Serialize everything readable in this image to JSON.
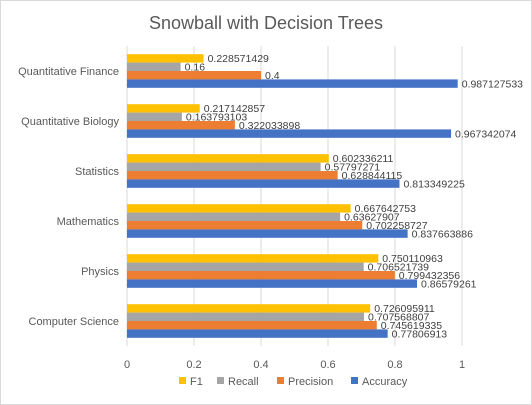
{
  "chart_data": {
    "type": "bar",
    "orientation": "horizontal",
    "title": "Snowball with Decision Trees",
    "categories": [
      "Computer Science",
      "Physics",
      "Mathematics",
      "Statistics",
      "Quantitative Biology",
      "Quantitative Finance"
    ],
    "series": [
      {
        "name": "Accuracy",
        "color": "#4472C4",
        "values": [
          0.77806913,
          0.86579261,
          0.837663886,
          0.813349225,
          0.967342074,
          0.987127533
        ]
      },
      {
        "name": "Precision",
        "color": "#ED7D31",
        "values": [
          0.745619335,
          0.799432356,
          0.702258727,
          0.628844115,
          0.322033898,
          0.4
        ]
      },
      {
        "name": "Recall",
        "color": "#A5A5A5",
        "values": [
          0.707568807,
          0.706521739,
          0.63627907,
          0.57797271,
          0.163793103,
          0.16
        ]
      },
      {
        "name": "F1",
        "color": "#FFC000",
        "values": [
          0.726095911,
          0.750110963,
          0.667642753,
          0.602336211,
          0.217142857,
          0.228571429
        ]
      }
    ],
    "data_labels": {
      "Accuracy": [
        "0.77806913",
        "0.86579261",
        "0.837663886",
        "0.813349225",
        "0.967342074",
        "0.987127533"
      ],
      "Precision": [
        "0.745619335",
        "0.799432356",
        "0.702258727",
        "0.628844115",
        "0.322033898",
        "0.4"
      ],
      "Recall": [
        "0.707568807",
        "0.706521739",
        "0.63627907",
        "0.57797271",
        "0.163793103",
        "0.16"
      ],
      "F1": [
        "0.726095911",
        "0.750110963",
        "0.667642753",
        "0.602336211",
        "0.217142857",
        "0.228571429"
      ]
    },
    "xlim": [
      0,
      1
    ],
    "xticks": [
      "0",
      "0.2",
      "0.4",
      "0.6",
      "0.8",
      "1"
    ],
    "xlabel": "",
    "ylabel": "",
    "grid": true,
    "legend_position": "bottom",
    "legend_order": [
      "F1",
      "Recall",
      "Precision",
      "Accuracy"
    ]
  }
}
